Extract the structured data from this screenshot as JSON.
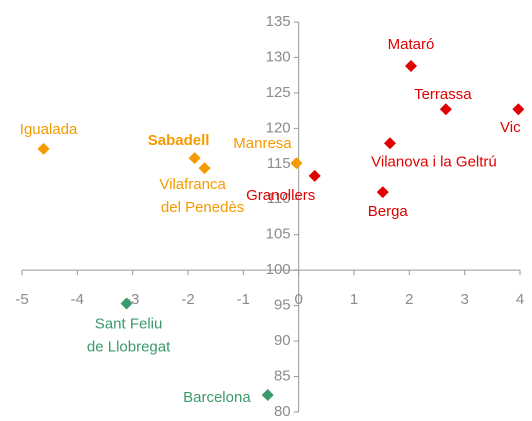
{
  "chart_data": {
    "type": "scatter",
    "xlim": [
      -5,
      4
    ],
    "xticks": [
      -5,
      -4,
      -3,
      -2,
      -1,
      0,
      1,
      2,
      3,
      4
    ],
    "ylim": [
      80,
      135
    ],
    "yticks": [
      80,
      85,
      90,
      95,
      100,
      105,
      110,
      115,
      120,
      125,
      130,
      135
    ],
    "axis_cross": [
      0,
      100
    ],
    "points": [
      {
        "label": [
          "Mataró"
        ],
        "x": 2.03,
        "y": 128.8,
        "color": "#e00000"
      },
      {
        "label": [
          "Terrassa"
        ],
        "x": 2.66,
        "y": 122.7,
        "color": "#e00000"
      },
      {
        "label": [
          "Vic"
        ],
        "x": 3.97,
        "y": 122.7,
        "color": "#e00000"
      },
      {
        "label": [
          "Vilanova i la Geltrú"
        ],
        "x": 1.65,
        "y": 117.9,
        "color": "#e00000"
      },
      {
        "label": [
          "Granollers"
        ],
        "x": 0.29,
        "y": 113.3,
        "color": "#e00000"
      },
      {
        "label": [
          "Berga"
        ],
        "x": 1.52,
        "y": 111.0,
        "color": "#e00000"
      },
      {
        "label": [
          "Manresa"
        ],
        "x": -0.04,
        "y": 115.1,
        "color": "#f59a00"
      },
      {
        "label": [
          "Igualada"
        ],
        "x": -4.61,
        "y": 117.1,
        "color": "#f59a00"
      },
      {
        "label": [
          "Sabadell"
        ],
        "x": -1.88,
        "y": 115.8,
        "color": "#f59a00",
        "bold": true
      },
      {
        "label": [
          "Vilafranca",
          "del Penedès"
        ],
        "x": -1.7,
        "y": 114.4,
        "color": "#f59a00"
      },
      {
        "label": [
          "Sant Feliu",
          "de Llobregat"
        ],
        "x": -3.11,
        "y": 95.3,
        "color": "#3a9a6a"
      },
      {
        "label": [
          "Barcelona"
        ],
        "x": -0.56,
        "y": 82.4,
        "color": "#3a9a6a"
      }
    ]
  }
}
